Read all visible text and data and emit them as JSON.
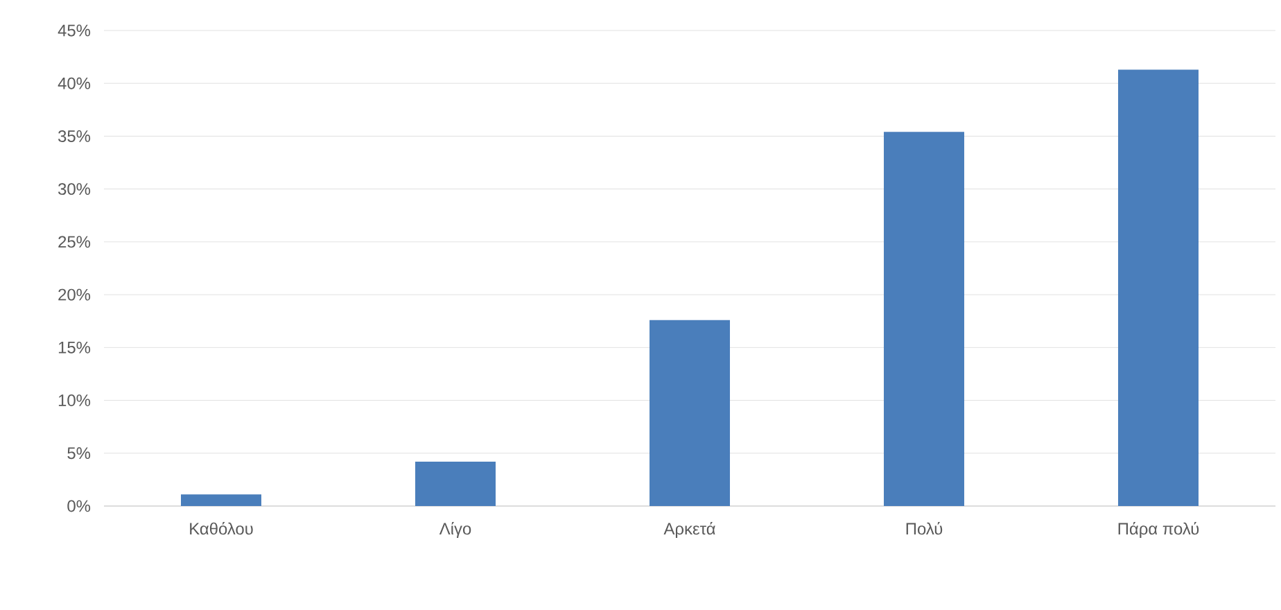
{
  "chart_data": {
    "type": "bar",
    "categories": [
      "Καθόλου",
      "Λίγο",
      "Αρκετά",
      "Πολύ",
      "Πάρα πολύ"
    ],
    "values": [
      1.1,
      4.2,
      17.6,
      35.4,
      41.3
    ],
    "color": "#4a7ebb",
    "ylim": [
      0,
      45
    ],
    "yticks": [
      {
        "value": 0,
        "label": "0%"
      },
      {
        "value": 5,
        "label": "5%"
      },
      {
        "value": 10,
        "label": "10%"
      },
      {
        "value": 15,
        "label": "15%"
      },
      {
        "value": 20,
        "label": "20%"
      },
      {
        "value": 25,
        "label": "25%"
      },
      {
        "value": 30,
        "label": "30%"
      },
      {
        "value": 35,
        "label": "35%"
      },
      {
        "value": 40,
        "label": "40%"
      },
      {
        "value": 45,
        "label": "45%"
      }
    ],
    "grid": "y"
  }
}
